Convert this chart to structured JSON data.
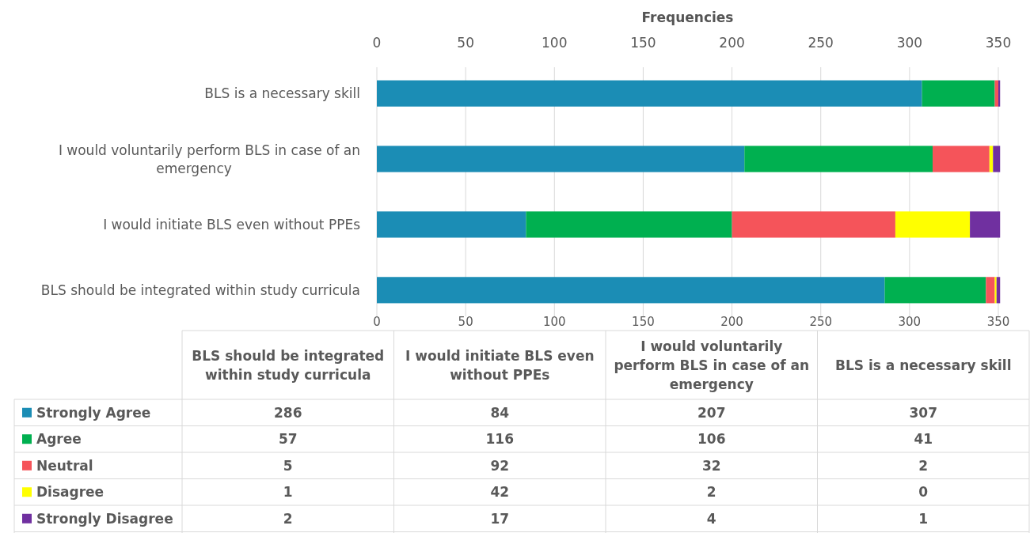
{
  "chart_data": [
    {
      "type": "bar",
      "orientation": "horizontal",
      "stacked": true,
      "x2label": "Frequencies",
      "categories": [
        "BLS is a necessary skill",
        "I would voluntarily perform BLS in case of an emergency",
        "I would initiate BLS even without PPEs",
        "BLS should be integrated within study curricula"
      ],
      "series": [
        {
          "color": "#1b8db5",
          "values": [
            307,
            207,
            84,
            286
          ]
        },
        {
          "color": "#00b050",
          "values": [
            41,
            106,
            116,
            57
          ]
        },
        {
          "color": "#f5545a",
          "values": [
            2,
            32,
            92,
            5
          ]
        },
        {
          "color": "#ffff00",
          "values": [
            0,
            2,
            42,
            1
          ]
        },
        {
          "color": "#7030a0",
          "values": [
            1,
            4,
            17,
            2
          ]
        }
      ],
      "xlim": [
        0,
        350
      ],
      "xticks": [
        0,
        50,
        100,
        150,
        200,
        250,
        300,
        350
      ],
      "x2lim": [
        0,
        350
      ],
      "x2ticks": [
        0,
        50,
        100,
        150,
        200,
        250,
        300,
        350
      ],
      "grid": "x"
    },
    {
      "type": "other",
      "categories": [
        "BLS should be integrated within study curricula",
        "I would initiate BLS even without PPEs",
        "I would voluntarily perform BLS in case of an emergency",
        "BLS is a necessary skill"
      ],
      "series": [
        {
          "name": "Strongly Agree",
          "color": "#1b8db5",
          "values": [
            286,
            84,
            207,
            307
          ]
        },
        {
          "name": "Agree",
          "color": "#00b050",
          "values": [
            57,
            116,
            106,
            41
          ]
        },
        {
          "name": "Neutral",
          "color": "#f5545a",
          "values": [
            5,
            92,
            32,
            2
          ]
        },
        {
          "name": "Disagree",
          "color": "#ffff00",
          "values": [
            1,
            42,
            2,
            0
          ]
        },
        {
          "name": "Strongly Disagree",
          "color": "#7030a0",
          "values": [
            2,
            17,
            4,
            1
          ]
        }
      ],
      "legend": "left",
      "data_labels": true
    }
  ]
}
